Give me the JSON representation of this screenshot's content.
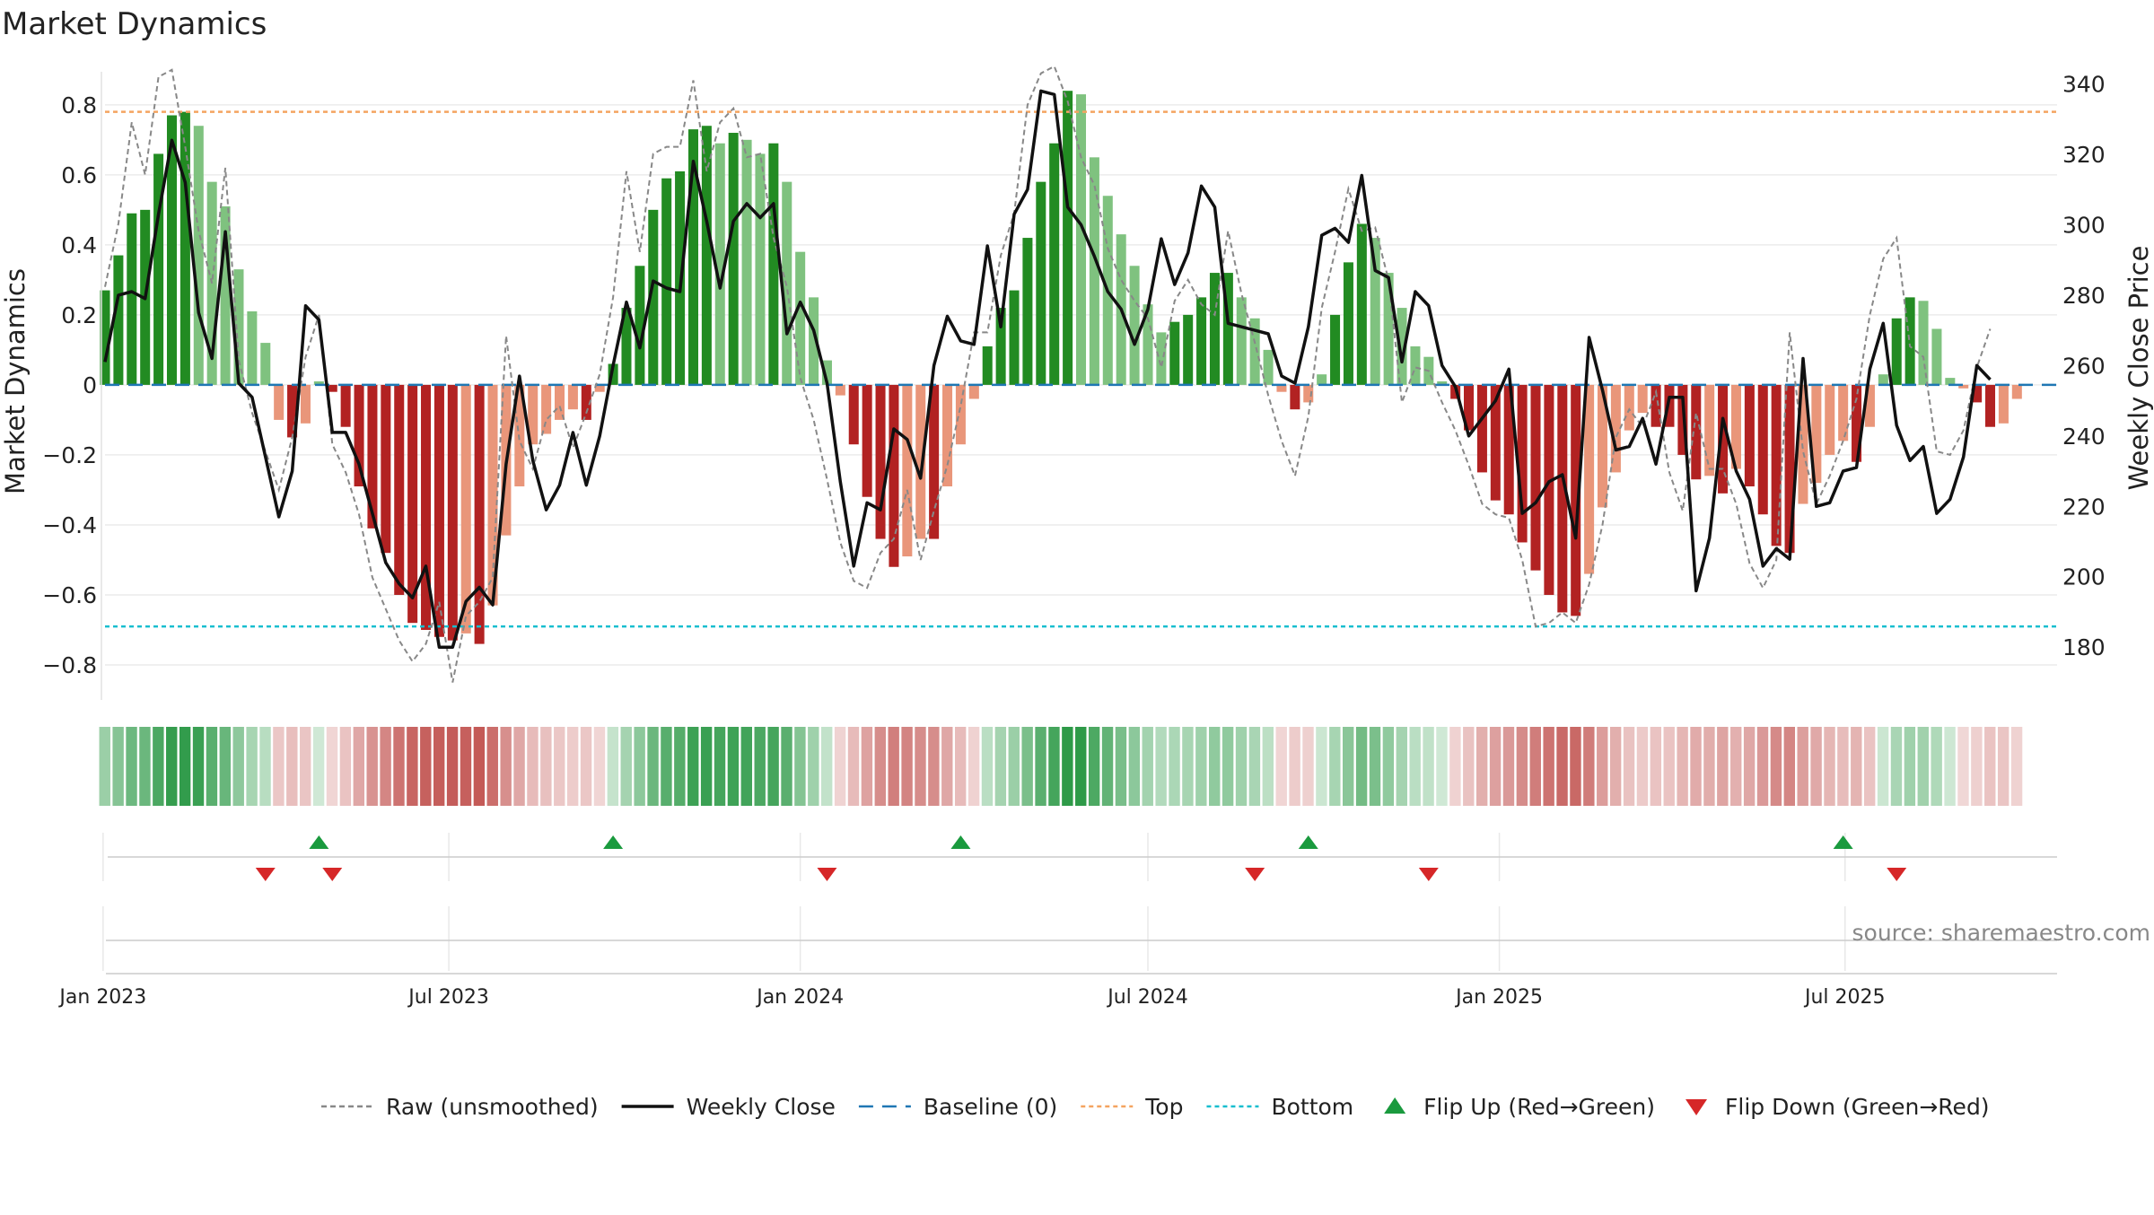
{
  "title": "Market Dynamics",
  "source": "source: sharemaestro.com",
  "colors": {
    "strong_green": "#228B22",
    "light_green": "#7FC27F",
    "strong_red": "#B22222",
    "light_red": "#E9967A",
    "close": "#111111",
    "raw": "#888888",
    "baseline": "#1f77b4",
    "top": "#F4A460",
    "bottom": "#17BECF",
    "flip_up": "#1a9a3e",
    "flip_down": "#d62728"
  },
  "chart_data": {
    "type": "bar",
    "title": "Market Dynamics",
    "ylabel": "Market Dynamics",
    "ylabel_right": "Weekly Close Price",
    "ylim": [
      -0.9,
      0.92
    ],
    "ylim_right": [
      165,
      346
    ],
    "yticks": [
      -0.8,
      -0.6,
      -0.4,
      -0.2,
      0,
      0.2,
      0.4,
      0.6,
      0.8
    ],
    "ytick_labels": [
      "−0.8",
      "−0.6",
      "−0.4",
      "−0.2",
      "0",
      "0.2",
      "0.4",
      "0.6",
      "0.8"
    ],
    "yticks_right": [
      180,
      200,
      220,
      240,
      260,
      280,
      300,
      320,
      340
    ],
    "x_start": "2023-01-02",
    "x_end": "2025-10-20",
    "xticks": [
      {
        "date": "2023-01-01",
        "label": "Jan 2023"
      },
      {
        "date": "2023-07-01",
        "label": "Jul 2023"
      },
      {
        "date": "2024-01-01",
        "label": "Jan 2024"
      },
      {
        "date": "2024-07-01",
        "label": "Jul 2024"
      },
      {
        "date": "2025-01-01",
        "label": "Jan 2025"
      },
      {
        "date": "2025-07-01",
        "label": "Jul 2025"
      }
    ],
    "top_level": 0.78,
    "bottom_level": -0.69,
    "baseline": 0,
    "dynamics": [
      0.27,
      0.37,
      0.49,
      0.5,
      0.66,
      0.77,
      0.78,
      0.74,
      0.58,
      0.51,
      0.33,
      0.21,
      0.12,
      -0.1,
      -0.15,
      -0.11,
      0.01,
      -0.02,
      -0.12,
      -0.29,
      -0.41,
      -0.48,
      -0.6,
      -0.68,
      -0.7,
      -0.72,
      -0.73,
      -0.71,
      -0.74,
      -0.63,
      -0.43,
      -0.29,
      -0.17,
      -0.14,
      -0.1,
      -0.07,
      -0.1,
      -0.02,
      0.06,
      0.22,
      0.34,
      0.5,
      0.59,
      0.61,
      0.73,
      0.74,
      0.69,
      0.72,
      0.7,
      0.66,
      0.69,
      0.58,
      0.38,
      0.25,
      0.07,
      -0.03,
      -0.17,
      -0.32,
      -0.44,
      -0.52,
      -0.49,
      -0.44,
      -0.44,
      -0.29,
      -0.17,
      -0.04,
      0.11,
      0.22,
      0.27,
      0.42,
      0.58,
      0.69,
      0.84,
      0.83,
      0.65,
      0.54,
      0.43,
      0.34,
      0.23,
      0.15,
      0.18,
      0.2,
      0.25,
      0.32,
      0.32,
      0.25,
      0.19,
      0.1,
      -0.02,
      -0.07,
      -0.05,
      0.03,
      0.2,
      0.35,
      0.46,
      0.42,
      0.32,
      0.22,
      0.11,
      0.08,
      0.01,
      -0.04,
      -0.13,
      -0.25,
      -0.33,
      -0.37,
      -0.45,
      -0.53,
      -0.6,
      -0.65,
      -0.66,
      -0.54,
      -0.35,
      -0.25,
      -0.13,
      -0.08,
      -0.12,
      -0.12,
      -0.2,
      -0.27,
      -0.26,
      -0.31,
      -0.24,
      -0.29,
      -0.37,
      -0.46,
      -0.48,
      -0.34,
      -0.28,
      -0.2,
      -0.16,
      -0.22,
      -0.12,
      0.03,
      0.19,
      0.25,
      0.24,
      0.16,
      0.02,
      -0.01,
      -0.05,
      -0.12,
      -0.11,
      -0.04
    ],
    "raw": [
      0.28,
      0.46,
      0.75,
      0.6,
      0.88,
      0.9,
      0.68,
      0.44,
      0.29,
      0.62,
      0.07,
      -0.08,
      -0.19,
      -0.3,
      -0.15,
      0.08,
      0.2,
      -0.17,
      -0.25,
      -0.37,
      -0.55,
      -0.64,
      -0.73,
      -0.79,
      -0.74,
      -0.62,
      -0.85,
      -0.66,
      -0.62,
      -0.55,
      0.14,
      -0.16,
      -0.24,
      -0.1,
      -0.06,
      -0.18,
      -0.08,
      0.03,
      0.25,
      0.61,
      0.38,
      0.66,
      0.68,
      0.68,
      0.87,
      0.61,
      0.75,
      0.79,
      0.65,
      0.66,
      0.42,
      0.28,
      0.02,
      -0.1,
      -0.27,
      -0.45,
      -0.56,
      -0.58,
      -0.48,
      -0.44,
      -0.3,
      -0.5,
      -0.36,
      -0.23,
      -0.06,
      0.15,
      0.15,
      0.37,
      0.49,
      0.8,
      0.89,
      0.91,
      0.81,
      0.65,
      0.57,
      0.39,
      0.3,
      0.24,
      0.19,
      0.05,
      0.24,
      0.3,
      0.23,
      0.2,
      0.44,
      0.26,
      0.12,
      -0.03,
      -0.16,
      -0.26,
      -0.09,
      0.22,
      0.38,
      0.56,
      0.44,
      0.45,
      0.3,
      -0.05,
      0.05,
      0.04,
      -0.05,
      -0.13,
      -0.23,
      -0.34,
      -0.37,
      -0.38,
      -0.5,
      -0.69,
      -0.68,
      -0.65,
      -0.68,
      -0.57,
      -0.4,
      -0.15,
      -0.07,
      -0.12,
      -0.02,
      -0.25,
      -0.36,
      -0.08,
      -0.24,
      -0.24,
      -0.34,
      -0.51,
      -0.58,
      -0.5,
      0.15,
      -0.19,
      -0.34,
      -0.26,
      -0.16,
      -0.04,
      0.2,
      0.36,
      0.42,
      0.11,
      0.08,
      -0.19,
      -0.2,
      -0.13,
      0.05,
      0.16
    ],
    "close": [
      261,
      280,
      281,
      279,
      303,
      324,
      312,
      275,
      262,
      298,
      255,
      251,
      234,
      217,
      230,
      277,
      273,
      241,
      241,
      232,
      218,
      204,
      198,
      194,
      203,
      180,
      180,
      193,
      197,
      192,
      232,
      257,
      233,
      219,
      226,
      241,
      226,
      240,
      260,
      278,
      265,
      284,
      282,
      281,
      318,
      301,
      282,
      301,
      306,
      302,
      306,
      269,
      278,
      270,
      255,
      227,
      203,
      221,
      219,
      242,
      239,
      228,
      260,
      274,
      267,
      266,
      294,
      271,
      303,
      310,
      338,
      337,
      305,
      300,
      291,
      281,
      276,
      266,
      276,
      296,
      283,
      292,
      311,
      305,
      272,
      271,
      270,
      269,
      257,
      255,
      271,
      297,
      299,
      295,
      314,
      287,
      285,
      261,
      281,
      277,
      260,
      254,
      240,
      245,
      250,
      259,
      218,
      221,
      227,
      229,
      211,
      268,
      253,
      236,
      237,
      245,
      232,
      251,
      251,
      196,
      211,
      245,
      230,
      222,
      203,
      208,
      205,
      262,
      220,
      221,
      230,
      231,
      259,
      272,
      243,
      233,
      237,
      218,
      222,
      234,
      260,
      256
    ],
    "flip_up_weeks": [
      16,
      38,
      64,
      90,
      130
    ],
    "flip_down_weeks": [
      12,
      17,
      54,
      86,
      99,
      134
    ],
    "legend": [
      {
        "key": "raw",
        "label": "Raw (unsmoothed)"
      },
      {
        "key": "close",
        "label": "Weekly Close"
      },
      {
        "key": "baseline",
        "label": "Baseline (0)"
      },
      {
        "key": "top",
        "label": "Top"
      },
      {
        "key": "bottom",
        "label": "Bottom"
      },
      {
        "key": "flip_up",
        "label": "Flip Up (Red→Green)"
      },
      {
        "key": "flip_down",
        "label": "Flip Down (Green→Red)"
      }
    ]
  }
}
